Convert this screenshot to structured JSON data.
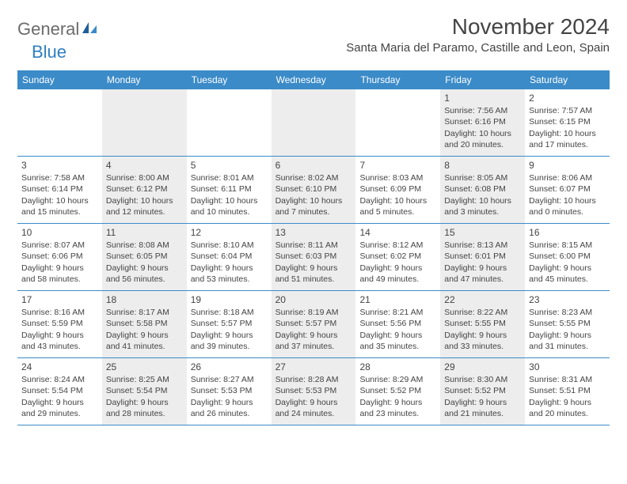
{
  "logo": {
    "part1": "General",
    "part2": "Blue"
  },
  "title": "November 2024",
  "location": "Santa Maria del Paramo, Castille and Leon, Spain",
  "colors": {
    "header_bg": "#3b8bc8",
    "header_text": "#ffffff",
    "row_border": "#3b8bc8",
    "shaded_bg": "#ededed",
    "body_text": "#444444",
    "logo_gray": "#6b6b6b",
    "logo_blue": "#2f7fc2"
  },
  "weekdays": [
    "Sunday",
    "Monday",
    "Tuesday",
    "Wednesday",
    "Thursday",
    "Friday",
    "Saturday"
  ],
  "weeks": [
    [
      {
        "day": "",
        "shaded": false,
        "sunrise": "",
        "sunset": "",
        "daylight": ""
      },
      {
        "day": "",
        "shaded": true,
        "sunrise": "",
        "sunset": "",
        "daylight": ""
      },
      {
        "day": "",
        "shaded": false,
        "sunrise": "",
        "sunset": "",
        "daylight": ""
      },
      {
        "day": "",
        "shaded": true,
        "sunrise": "",
        "sunset": "",
        "daylight": ""
      },
      {
        "day": "",
        "shaded": false,
        "sunrise": "",
        "sunset": "",
        "daylight": ""
      },
      {
        "day": "1",
        "shaded": true,
        "sunrise": "Sunrise: 7:56 AM",
        "sunset": "Sunset: 6:16 PM",
        "daylight": "Daylight: 10 hours and 20 minutes."
      },
      {
        "day": "2",
        "shaded": false,
        "sunrise": "Sunrise: 7:57 AM",
        "sunset": "Sunset: 6:15 PM",
        "daylight": "Daylight: 10 hours and 17 minutes."
      }
    ],
    [
      {
        "day": "3",
        "shaded": false,
        "sunrise": "Sunrise: 7:58 AM",
        "sunset": "Sunset: 6:14 PM",
        "daylight": "Daylight: 10 hours and 15 minutes."
      },
      {
        "day": "4",
        "shaded": true,
        "sunrise": "Sunrise: 8:00 AM",
        "sunset": "Sunset: 6:12 PM",
        "daylight": "Daylight: 10 hours and 12 minutes."
      },
      {
        "day": "5",
        "shaded": false,
        "sunrise": "Sunrise: 8:01 AM",
        "sunset": "Sunset: 6:11 PM",
        "daylight": "Daylight: 10 hours and 10 minutes."
      },
      {
        "day": "6",
        "shaded": true,
        "sunrise": "Sunrise: 8:02 AM",
        "sunset": "Sunset: 6:10 PM",
        "daylight": "Daylight: 10 hours and 7 minutes."
      },
      {
        "day": "7",
        "shaded": false,
        "sunrise": "Sunrise: 8:03 AM",
        "sunset": "Sunset: 6:09 PM",
        "daylight": "Daylight: 10 hours and 5 minutes."
      },
      {
        "day": "8",
        "shaded": true,
        "sunrise": "Sunrise: 8:05 AM",
        "sunset": "Sunset: 6:08 PM",
        "daylight": "Daylight: 10 hours and 3 minutes."
      },
      {
        "day": "9",
        "shaded": false,
        "sunrise": "Sunrise: 8:06 AM",
        "sunset": "Sunset: 6:07 PM",
        "daylight": "Daylight: 10 hours and 0 minutes."
      }
    ],
    [
      {
        "day": "10",
        "shaded": false,
        "sunrise": "Sunrise: 8:07 AM",
        "sunset": "Sunset: 6:06 PM",
        "daylight": "Daylight: 9 hours and 58 minutes."
      },
      {
        "day": "11",
        "shaded": true,
        "sunrise": "Sunrise: 8:08 AM",
        "sunset": "Sunset: 6:05 PM",
        "daylight": "Daylight: 9 hours and 56 minutes."
      },
      {
        "day": "12",
        "shaded": false,
        "sunrise": "Sunrise: 8:10 AM",
        "sunset": "Sunset: 6:04 PM",
        "daylight": "Daylight: 9 hours and 53 minutes."
      },
      {
        "day": "13",
        "shaded": true,
        "sunrise": "Sunrise: 8:11 AM",
        "sunset": "Sunset: 6:03 PM",
        "daylight": "Daylight: 9 hours and 51 minutes."
      },
      {
        "day": "14",
        "shaded": false,
        "sunrise": "Sunrise: 8:12 AM",
        "sunset": "Sunset: 6:02 PM",
        "daylight": "Daylight: 9 hours and 49 minutes."
      },
      {
        "day": "15",
        "shaded": true,
        "sunrise": "Sunrise: 8:13 AM",
        "sunset": "Sunset: 6:01 PM",
        "daylight": "Daylight: 9 hours and 47 minutes."
      },
      {
        "day": "16",
        "shaded": false,
        "sunrise": "Sunrise: 8:15 AM",
        "sunset": "Sunset: 6:00 PM",
        "daylight": "Daylight: 9 hours and 45 minutes."
      }
    ],
    [
      {
        "day": "17",
        "shaded": false,
        "sunrise": "Sunrise: 8:16 AM",
        "sunset": "Sunset: 5:59 PM",
        "daylight": "Daylight: 9 hours and 43 minutes."
      },
      {
        "day": "18",
        "shaded": true,
        "sunrise": "Sunrise: 8:17 AM",
        "sunset": "Sunset: 5:58 PM",
        "daylight": "Daylight: 9 hours and 41 minutes."
      },
      {
        "day": "19",
        "shaded": false,
        "sunrise": "Sunrise: 8:18 AM",
        "sunset": "Sunset: 5:57 PM",
        "daylight": "Daylight: 9 hours and 39 minutes."
      },
      {
        "day": "20",
        "shaded": true,
        "sunrise": "Sunrise: 8:19 AM",
        "sunset": "Sunset: 5:57 PM",
        "daylight": "Daylight: 9 hours and 37 minutes."
      },
      {
        "day": "21",
        "shaded": false,
        "sunrise": "Sunrise: 8:21 AM",
        "sunset": "Sunset: 5:56 PM",
        "daylight": "Daylight: 9 hours and 35 minutes."
      },
      {
        "day": "22",
        "shaded": true,
        "sunrise": "Sunrise: 8:22 AM",
        "sunset": "Sunset: 5:55 PM",
        "daylight": "Daylight: 9 hours and 33 minutes."
      },
      {
        "day": "23",
        "shaded": false,
        "sunrise": "Sunrise: 8:23 AM",
        "sunset": "Sunset: 5:55 PM",
        "daylight": "Daylight: 9 hours and 31 minutes."
      }
    ],
    [
      {
        "day": "24",
        "shaded": false,
        "sunrise": "Sunrise: 8:24 AM",
        "sunset": "Sunset: 5:54 PM",
        "daylight": "Daylight: 9 hours and 29 minutes."
      },
      {
        "day": "25",
        "shaded": true,
        "sunrise": "Sunrise: 8:25 AM",
        "sunset": "Sunset: 5:54 PM",
        "daylight": "Daylight: 9 hours and 28 minutes."
      },
      {
        "day": "26",
        "shaded": false,
        "sunrise": "Sunrise: 8:27 AM",
        "sunset": "Sunset: 5:53 PM",
        "daylight": "Daylight: 9 hours and 26 minutes."
      },
      {
        "day": "27",
        "shaded": true,
        "sunrise": "Sunrise: 8:28 AM",
        "sunset": "Sunset: 5:53 PM",
        "daylight": "Daylight: 9 hours and 24 minutes."
      },
      {
        "day": "28",
        "shaded": false,
        "sunrise": "Sunrise: 8:29 AM",
        "sunset": "Sunset: 5:52 PM",
        "daylight": "Daylight: 9 hours and 23 minutes."
      },
      {
        "day": "29",
        "shaded": true,
        "sunrise": "Sunrise: 8:30 AM",
        "sunset": "Sunset: 5:52 PM",
        "daylight": "Daylight: 9 hours and 21 minutes."
      },
      {
        "day": "30",
        "shaded": false,
        "sunrise": "Sunrise: 8:31 AM",
        "sunset": "Sunset: 5:51 PM",
        "daylight": "Daylight: 9 hours and 20 minutes."
      }
    ]
  ]
}
